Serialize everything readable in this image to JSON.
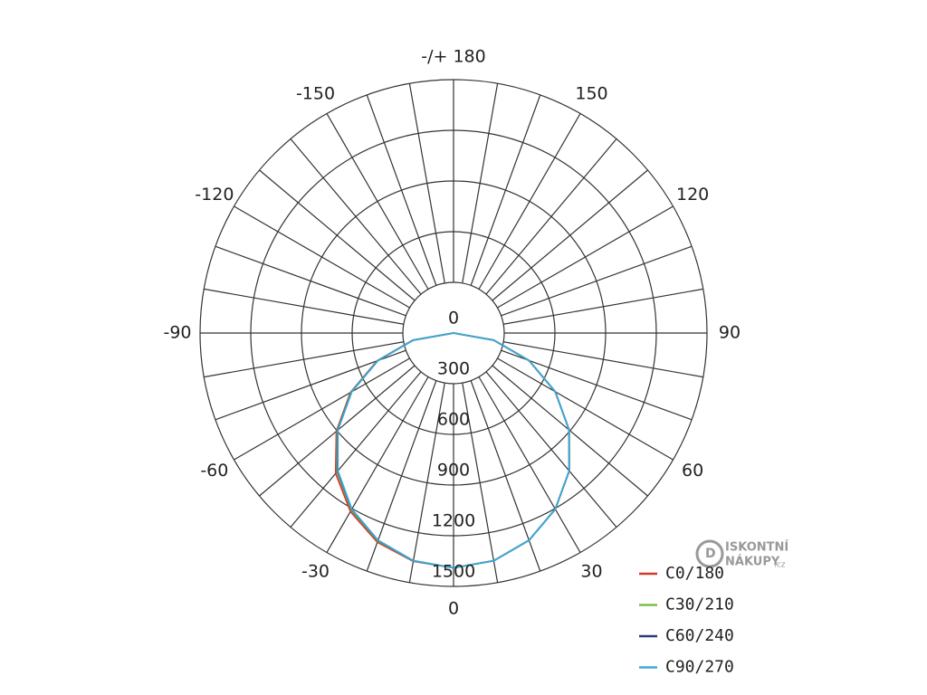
{
  "chart_data": {
    "type": "polar",
    "angle_labels": [
      {
        "value": 180,
        "label": "-/+ 180"
      },
      150,
      120,
      90,
      60,
      30,
      0,
      -30,
      -60,
      -90,
      -120,
      -150
    ],
    "angle_grid": [
      -170,
      -160,
      -150,
      -140,
      -130,
      -120,
      -110,
      -100,
      -90,
      -80,
      -70,
      -60,
      -50,
      -40,
      -30,
      -20,
      -10,
      0,
      10,
      20,
      30,
      40,
      50,
      60,
      70,
      80,
      90,
      100,
      110,
      120,
      130,
      140,
      150,
      160,
      170,
      180
    ],
    "rlim": [
      0,
      1500
    ],
    "rticks": [
      0,
      300,
      600,
      900,
      1200,
      1500
    ],
    "angles": [
      -90,
      -80,
      -70,
      -60,
      -50,
      -40,
      -30,
      -20,
      -10,
      0,
      10,
      20,
      30,
      40,
      50,
      60,
      70,
      80,
      90
    ],
    "series": [
      {
        "name": "C0/180",
        "color": "#d2392b",
        "values": [
          0,
          245,
          482,
          705,
          905,
          1085,
          1220,
          1318,
          1372,
          1390,
          1369,
          1306,
          1204,
          1065,
          893,
          695,
          475,
          241,
          0
        ]
      },
      {
        "name": "C30/210",
        "color": "#7bbf45",
        "values": [
          0,
          243,
          478,
          700,
          898,
          1072,
          1210,
          1310,
          1370,
          1390,
          1369,
          1306,
          1204,
          1065,
          893,
          695,
          475,
          241,
          0
        ]
      },
      {
        "name": "C60/240",
        "color": "#2c3a7c",
        "values": [
          0,
          242,
          476,
          697,
          895,
          1068,
          1206,
          1307,
          1369,
          1390,
          1369,
          1306,
          1204,
          1065,
          893,
          695,
          475,
          241,
          0
        ]
      },
      {
        "name": "C90/270",
        "color": "#3ba9d9",
        "values": [
          0,
          241,
          475,
          695,
          893,
          1065,
          1204,
          1306,
          1369,
          1390,
          1369,
          1306,
          1204,
          1065,
          893,
          695,
          475,
          241,
          0
        ]
      }
    ],
    "legend": "bottom-right"
  },
  "watermark": {
    "line1": "ISKONTNÍ",
    "line2": "NÁKUPY",
    "suffix": ".cz"
  }
}
